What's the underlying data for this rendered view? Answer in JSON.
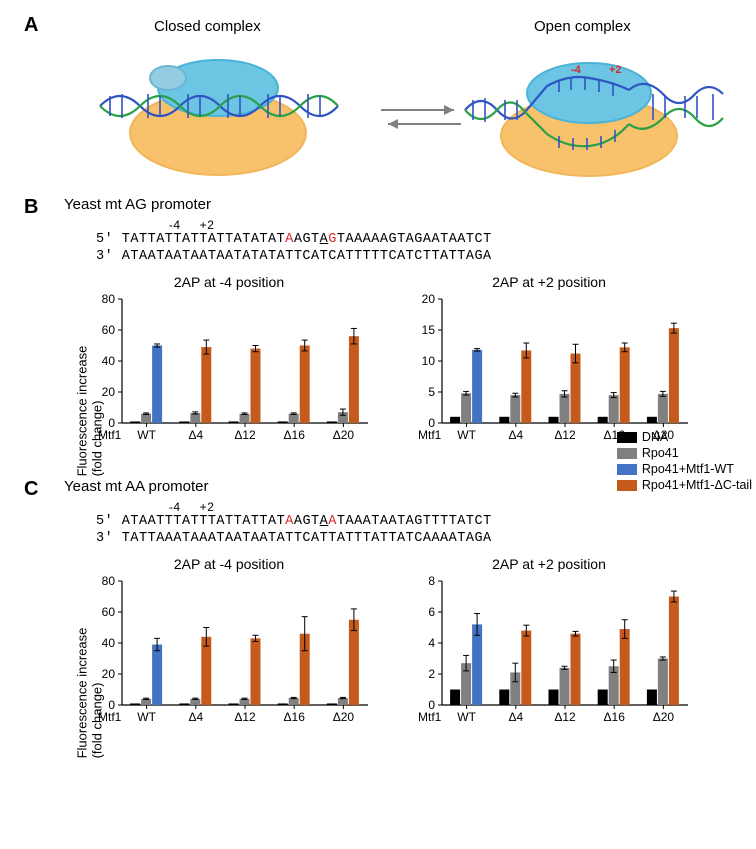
{
  "panelA": {
    "closed_label": "Closed complex",
    "open_label": "Open complex",
    "colors": {
      "polymerase": "#f8c16c",
      "factor_big": "#6bc5e3",
      "factor_small": "#94cce3",
      "dna_strand1": "#2f54c4",
      "dna_strand2": "#2aa146"
    },
    "pos_labels": {
      "minus4": "-4",
      "plus2": "+2"
    }
  },
  "panelB": {
    "title": "Yeast mt AG promoter",
    "pos_indicator": "                   -4     +2",
    "seq_top_pre": "5' TATTATTATTATTATATAT",
    "seq_top_A": "A",
    "seq_top_mid1": "AGT",
    "seq_top_u": "A",
    "seq_top_G": "G",
    "seq_top_post": "TAAAAAGTAGAATAATCT",
    "seq_bot": "3' ATAATAATAATAATATATATTCATCATTTTTCATCTTATTAGA"
  },
  "panelC": {
    "title": "Yeast mt AA promoter",
    "pos_indicator": "                   -4     +2",
    "seq_top_pre": "5' ATAATTTATTTATTATTAT",
    "seq_top_A": "A",
    "seq_top_mid1": "AGT",
    "seq_top_u": "A",
    "seq_top_A2": "A",
    "seq_top_post": "TAAATAATAGTTTTATCT",
    "seq_bot": "3' TATTAAATAAATAATAATATTCATTATTTATTATCAAAATAGA"
  },
  "legend": {
    "items": [
      {
        "label": "DNA",
        "color": "#000000"
      },
      {
        "label": "Rpo41",
        "color": "#808080"
      },
      {
        "label": "Rpo41+Mtf1-WT",
        "color": "#4472c4"
      },
      {
        "label": "Rpo41+Mtf1-ΔC-tail",
        "color": "#c55a1d"
      }
    ]
  },
  "charts": {
    "yaxis_label": "Fluorescence increase\n(fold change)",
    "xaxis_label": "Mtf1",
    "categories": [
      "WT",
      "Δ4",
      "Δ12",
      "Δ16",
      "Δ20"
    ],
    "colors": {
      "dna": "#000000",
      "rpo": "#808080",
      "wt": "#4472c4",
      "dc": "#c55a1d"
    },
    "B_minus4": {
      "title": "2AP at -4 position",
      "ylim": [
        0,
        80
      ],
      "ytick_step": 20,
      "groups": [
        {
          "x": "WT",
          "dna": 1,
          "rpo": 6,
          "wt": 50,
          "dc": null,
          "err_rpo": 0.5,
          "err_wt": 1,
          "err_dc": 0
        },
        {
          "x": "Δ4",
          "dna": 1,
          "rpo": 6.5,
          "wt": null,
          "dc": 49,
          "err_rpo": 0.7,
          "err_dc": 4.5
        },
        {
          "x": "Δ12",
          "dna": 1,
          "rpo": 6,
          "wt": null,
          "dc": 48,
          "err_rpo": 0.5,
          "err_dc": 2
        },
        {
          "x": "Δ16",
          "dna": 1,
          "rpo": 6,
          "wt": null,
          "dc": 50,
          "err_rpo": 0.5,
          "err_dc": 3.5
        },
        {
          "x": "Δ20",
          "dna": 1,
          "rpo": 7,
          "wt": null,
          "dc": 56,
          "err_rpo": 2,
          "err_dc": 5
        }
      ]
    },
    "B_plus2": {
      "title": "2AP at +2 position",
      "ylim": [
        0,
        20
      ],
      "ytick_step": 5,
      "groups": [
        {
          "x": "WT",
          "dna": 1,
          "rpo": 4.8,
          "wt": 11.8,
          "dc": null,
          "err_rpo": 0.3,
          "err_wt": 0.2,
          "err_dc": 0
        },
        {
          "x": "Δ4",
          "dna": 1,
          "rpo": 4.5,
          "wt": null,
          "dc": 11.7,
          "err_rpo": 0.3,
          "err_dc": 1.2
        },
        {
          "x": "Δ12",
          "dna": 1,
          "rpo": 4.7,
          "wt": null,
          "dc": 11.2,
          "err_rpo": 0.5,
          "err_dc": 1.5
        },
        {
          "x": "Δ16",
          "dna": 1,
          "rpo": 4.5,
          "wt": null,
          "dc": 12.2,
          "err_rpo": 0.4,
          "err_dc": 0.7
        },
        {
          "x": "Δ20",
          "dna": 1,
          "rpo": 4.7,
          "wt": null,
          "dc": 15.3,
          "err_rpo": 0.4,
          "err_dc": 0.8
        }
      ]
    },
    "C_minus4": {
      "title": "2AP at -4 position",
      "ylim": [
        0,
        80
      ],
      "ytick_step": 20,
      "groups": [
        {
          "x": "WT",
          "dna": 1,
          "rpo": 4,
          "wt": 39,
          "dc": null,
          "err_rpo": 0.4,
          "err_wt": 4,
          "err_dc": 0
        },
        {
          "x": "Δ4",
          "dna": 1,
          "rpo": 4,
          "wt": null,
          "dc": 44,
          "err_rpo": 0.4,
          "err_dc": 6
        },
        {
          "x": "Δ12",
          "dna": 1,
          "rpo": 4,
          "wt": null,
          "dc": 43,
          "err_rpo": 0.4,
          "err_dc": 2
        },
        {
          "x": "Δ16",
          "dna": 1,
          "rpo": 4.5,
          "wt": null,
          "dc": 46,
          "err_rpo": 0.4,
          "err_dc": 11
        },
        {
          "x": "Δ20",
          "dna": 1,
          "rpo": 4.5,
          "wt": null,
          "dc": 55,
          "err_rpo": 0.4,
          "err_dc": 7
        }
      ]
    },
    "C_plus2": {
      "title": "2AP at +2 position",
      "ylim": [
        0,
        8
      ],
      "ytick_step": 2,
      "groups": [
        {
          "x": "WT",
          "dna": 1,
          "rpo": 2.7,
          "wt": 5.2,
          "dc": null,
          "err_rpo": 0.5,
          "err_wt": 0.7,
          "err_dc": 0
        },
        {
          "x": "Δ4",
          "dna": 1,
          "rpo": 2.1,
          "wt": null,
          "dc": 4.8,
          "err_rpo": 0.6,
          "err_dc": 0.35
        },
        {
          "x": "Δ12",
          "dna": 1,
          "rpo": 2.4,
          "wt": null,
          "dc": 4.6,
          "err_rpo": 0.1,
          "err_dc": 0.15
        },
        {
          "x": "Δ16",
          "dna": 1,
          "rpo": 2.5,
          "wt": null,
          "dc": 4.9,
          "err_rpo": 0.4,
          "err_dc": 0.6
        },
        {
          "x": "Δ20",
          "dna": 1,
          "rpo": 3.0,
          "wt": null,
          "dc": 7.0,
          "err_rpo": 0.1,
          "err_dc": 0.35
        }
      ]
    }
  }
}
